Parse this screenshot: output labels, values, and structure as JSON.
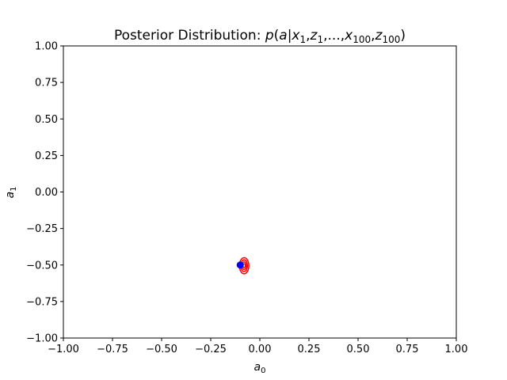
{
  "chart_data": {
    "type": "contour",
    "title": "Posterior Distribution:  p(a|x₁,z₁,...,x₁₀₀,z₁₀₀)",
    "title_parts": {
      "prefix": "Posterior Distribution:  ",
      "p": "p",
      "open": "(",
      "a": "a",
      "bar": "|",
      "x": "x",
      "sub1": "1",
      "comma": ",",
      "z": "z",
      "ellipsis": "...",
      "sub100": "100",
      "close": ")"
    },
    "xlabel": "a",
    "xlabel_sub": "0",
    "ylabel": "a",
    "ylabel_sub": "1",
    "xlim": [
      -1.0,
      1.0
    ],
    "ylim": [
      -1.0,
      1.0
    ],
    "xticks": [
      -1.0,
      -0.75,
      -0.5,
      -0.25,
      0.0,
      0.25,
      0.5,
      0.75,
      1.0
    ],
    "xtick_labels": [
      "−1.00",
      "−0.75",
      "−0.50",
      "−0.25",
      "0.00",
      "0.25",
      "0.50",
      "0.75",
      "1.00"
    ],
    "yticks": [
      -1.0,
      -0.75,
      -0.5,
      -0.25,
      0.0,
      0.25,
      0.5,
      0.75,
      1.0
    ],
    "ytick_labels": [
      "−1.00",
      "−0.75",
      "−0.50",
      "−0.25",
      "0.00",
      "0.25",
      "0.50",
      "0.75",
      "1.00"
    ],
    "grid": false,
    "contours": {
      "center": [
        -0.08,
        -0.505
      ],
      "color": "#ff0000",
      "levels": [
        {
          "rx": 0.024,
          "ry": 0.055
        },
        {
          "rx": 0.017,
          "ry": 0.04
        },
        {
          "rx": 0.011,
          "ry": 0.026
        },
        {
          "rx": 0.006,
          "ry": 0.013
        }
      ]
    },
    "true_point": {
      "x": -0.1,
      "y": -0.5,
      "color": "#0000ff"
    }
  }
}
